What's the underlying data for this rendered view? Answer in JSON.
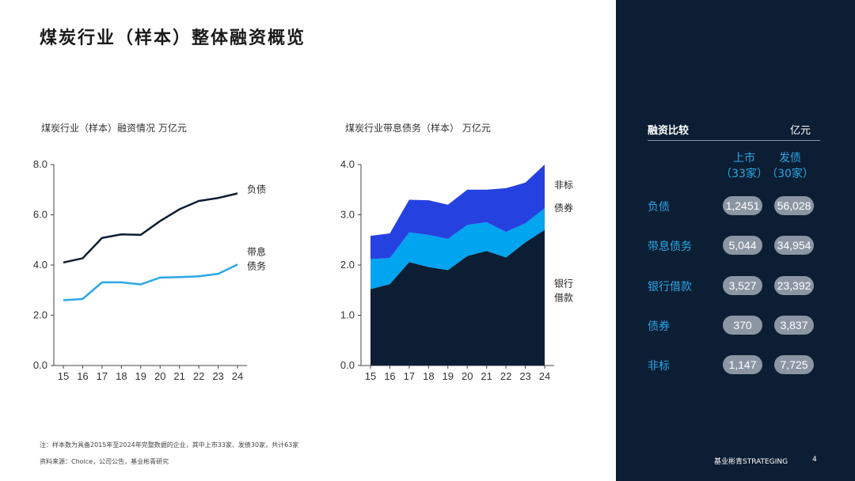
{
  "page": {
    "title": "煤炭行业（样本）整体融资概览",
    "note": "注：样本数为具备2015年至2024年完整数据的企业，其中上市33家、发债30家，共计63家",
    "source": "资料来源：Choice，公司公告，基业彬青研究"
  },
  "chart_data": [
    {
      "type": "line",
      "title": "煤炭行业（样本）融资情况 万亿元",
      "categories": [
        "15",
        "16",
        "17",
        "18",
        "19",
        "20",
        "21",
        "22",
        "23",
        "24"
      ],
      "ylim": [
        0,
        8
      ],
      "yticks": [
        "0.0",
        "2.0",
        "4.0",
        "6.0",
        "8.0"
      ],
      "legend_position": "right-inline",
      "grid": false,
      "series": [
        {
          "name": "负债",
          "color": "#0c1e33",
          "values": [
            4.1,
            4.27,
            5.08,
            5.22,
            5.2,
            5.75,
            6.22,
            6.55,
            6.67,
            6.85
          ]
        },
        {
          "name": "带息债务",
          "color": "#2aa7e8",
          "values": [
            2.6,
            2.65,
            3.31,
            3.31,
            3.23,
            3.5,
            3.52,
            3.55,
            3.65,
            4.02
          ]
        }
      ]
    },
    {
      "type": "area",
      "title": "煤炭行业带息债务（样本） 万亿元",
      "categories": [
        "15",
        "16",
        "17",
        "18",
        "19",
        "20",
        "21",
        "22",
        "23",
        "24"
      ],
      "ylim": [
        0,
        4
      ],
      "yticks": [
        "0.0",
        "1.0",
        "2.0",
        "3.0",
        "4.0"
      ],
      "stacked": true,
      "legend_position": "right-inline",
      "grid": false,
      "series": [
        {
          "name": "银行借款",
          "color": "#0c1e33",
          "values": [
            1.52,
            1.62,
            2.06,
            1.96,
            1.9,
            2.18,
            2.28,
            2.15,
            2.45,
            2.7
          ]
        },
        {
          "name": "债券",
          "color": "#00a4ef",
          "values": [
            0.6,
            0.52,
            0.59,
            0.64,
            0.62,
            0.62,
            0.57,
            0.51,
            0.38,
            0.43
          ]
        },
        {
          "name": "非标",
          "color": "#2541e0",
          "values": [
            0.46,
            0.49,
            0.65,
            0.69,
            0.68,
            0.7,
            0.65,
            0.87,
            0.81,
            0.87
          ]
        }
      ]
    }
  ],
  "panel": {
    "title": "融资比较",
    "unit": "亿元",
    "col1": "上市\n（33家）",
    "col2": "发债\n（30家）",
    "rows": [
      {
        "label": "负债",
        "v1": "1,2451",
        "v2": "56,028"
      },
      {
        "label": "带息债务",
        "v1": "5,044",
        "v2": "34,954"
      },
      {
        "label": "银行借款",
        "v1": "3,527",
        "v2": "23,392"
      },
      {
        "label": "债券",
        "v1": "370",
        "v2": "3,837"
      },
      {
        "label": "非标",
        "v1": "1,147",
        "v2": "7,725"
      }
    ],
    "brand": "基业彬青STRATEGING",
    "page_number": "4"
  }
}
